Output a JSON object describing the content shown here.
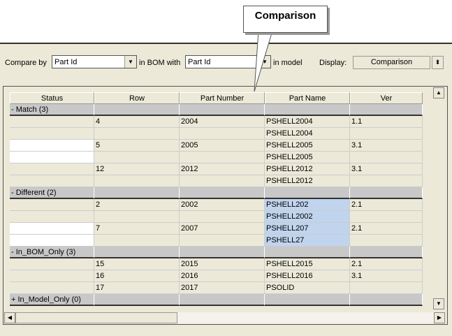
{
  "callout": {
    "label": "Comparison"
  },
  "toolbar": {
    "compare_by_label": "Compare by",
    "compare_by_value": "Part Id",
    "in_bom_with_label": "in BOM with",
    "bom_value": "Part Id",
    "in_model_label": "in model",
    "display_label": "Display:",
    "display_value": "Comparison"
  },
  "table": {
    "columns": [
      "Status",
      "Row",
      "Part Number",
      "Part Name",
      "Ver"
    ],
    "rows": [
      {
        "type": "group",
        "cells": [
          "- Match (3)",
          "",
          "",
          "",
          ""
        ]
      },
      {
        "type": "w",
        "cells": [
          "",
          "4",
          "2004",
          "PSHELL2004",
          "1.1"
        ]
      },
      {
        "type": "w",
        "cells": [
          "",
          "",
          "",
          "PSHELL2004",
          ""
        ]
      },
      {
        "type": "b",
        "cells": [
          "",
          "5",
          "2005",
          "PSHELL2005",
          "3.1"
        ]
      },
      {
        "type": "b",
        "cells": [
          "",
          "",
          "",
          "PSHELL2005",
          ""
        ]
      },
      {
        "type": "w",
        "cells": [
          "",
          "12",
          "2012",
          "PSHELL2012",
          "3.1"
        ]
      },
      {
        "type": "w",
        "cells": [
          "",
          "",
          "",
          "PSHELL2012",
          ""
        ]
      },
      {
        "type": "group",
        "cells": [
          "- Different (2)",
          "",
          "",
          "",
          ""
        ]
      },
      {
        "type": "w",
        "hl": true,
        "cells": [
          "",
          "2",
          "2002",
          "PSHELL202",
          "2.1"
        ]
      },
      {
        "type": "w",
        "hl": true,
        "cells": [
          "",
          "",
          "",
          "PSHELL2002",
          ""
        ]
      },
      {
        "type": "b",
        "hl": true,
        "cells": [
          "",
          "7",
          "2007",
          "PSHELL207",
          "2.1"
        ]
      },
      {
        "type": "b",
        "hl": true,
        "cells": [
          "",
          "",
          "",
          "PSHELL27",
          ""
        ]
      },
      {
        "type": "group",
        "cells": [
          "- In_BOM_Only (3)",
          "",
          "",
          "",
          ""
        ]
      },
      {
        "type": "w",
        "cells": [
          "",
          "15",
          "2015",
          "PSHELL2015",
          "2.1"
        ]
      },
      {
        "type": "w",
        "cells": [
          "",
          "16",
          "2016",
          "PSHELL2016",
          "3.1"
        ]
      },
      {
        "type": "w",
        "cells": [
          "",
          "17",
          "2017",
          "PSOLID",
          ""
        ]
      },
      {
        "type": "group",
        "cells": [
          "+ In_Model_Only (0)",
          "",
          "",
          "",
          ""
        ]
      }
    ]
  },
  "colors": {
    "highlight": "#c0d4ee",
    "panel": "#ece9d8",
    "group": "#c8c8c8"
  }
}
